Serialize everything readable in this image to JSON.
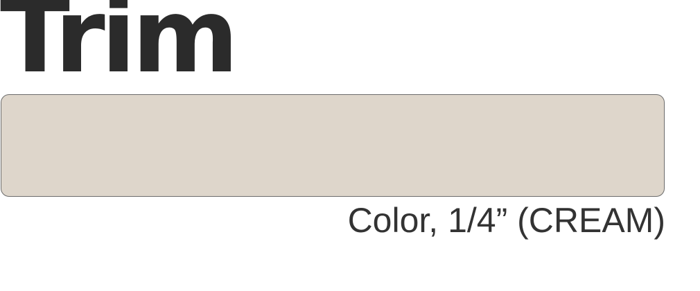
{
  "title": "Trim",
  "swatch": {
    "color": "#ded6cb"
  },
  "caption": "Color, 1/4” (CREAM)"
}
